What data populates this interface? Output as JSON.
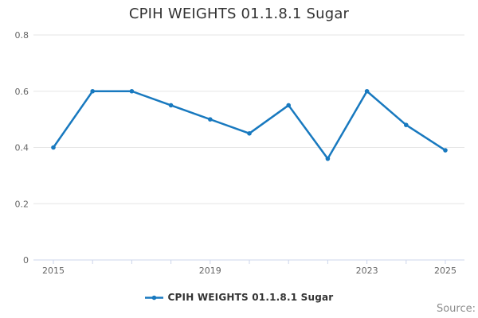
{
  "title": "CPIH WEIGHTS 01.1.8.1 Sugar",
  "legend": {
    "label": "CPIH WEIGHTS 01.1.8.1 Sugar"
  },
  "credits": {
    "label": "Source:"
  },
  "colors": {
    "line": "#1879bf",
    "grid": "#e6e6e6",
    "axis": "#ccd6eb",
    "tick_label": "#666666",
    "title_text": "#333333",
    "legend_text": "#333333",
    "credits_text": "#8c8c8c"
  },
  "chart_data": {
    "type": "line",
    "x": [
      2015,
      2016,
      2017,
      2018,
      2019,
      2020,
      2021,
      2022,
      2023,
      2024,
      2025
    ],
    "series": [
      {
        "name": "CPIH WEIGHTS 01.1.8.1 Sugar",
        "values": [
          0.4,
          0.6,
          0.6,
          0.55,
          0.5,
          0.45,
          0.55,
          0.36,
          0.6,
          0.48,
          0.39
        ]
      }
    ],
    "title": "CPIH WEIGHTS 01.1.8.1 Sugar",
    "xlabel": "",
    "ylabel": "",
    "ylim": [
      0,
      0.8
    ],
    "yticks": [
      0,
      0.2,
      0.4,
      0.6,
      0.8
    ],
    "xticks_labeled": [
      2015,
      2019,
      2023,
      2025
    ],
    "grid": true,
    "legend_position": "bottom",
    "marker": "circle"
  }
}
